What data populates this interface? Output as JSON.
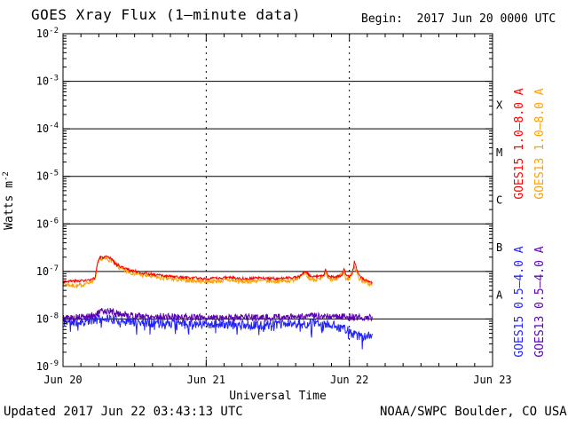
{
  "header": {
    "title": "GOES Xray Flux (1–minute data)",
    "begin_label": "Begin:  2017 Jun 20 0000 UTC"
  },
  "footer": {
    "updated": "Updated 2017 Jun 22 03:43:13 UTC",
    "credit": "NOAA/SWPC Boulder, CO USA"
  },
  "chart_data": {
    "type": "line",
    "title": "GOES Xray Flux (1–minute data)",
    "xlabel": "Universal Time",
    "ylabel": {
      "base": "Watts m",
      "exp": "-2"
    },
    "x_axis": {
      "tick_labels": [
        "Jun 20",
        "Jun 21",
        "Jun 22",
        "Jun 23"
      ],
      "days": [
        0,
        1,
        2,
        3
      ],
      "minor_ticks_per_day": 8
    },
    "y_axis": {
      "log_range": [
        -9,
        -2
      ],
      "tick_exponents": [
        "-2",
        "-3",
        "-4",
        "-5",
        "-6",
        "-7",
        "-8",
        "-9"
      ]
    },
    "grid": {
      "h_solid_decades": [
        -3,
        -4,
        -5,
        -6,
        -7,
        -8
      ],
      "v_dashed_days": [
        1,
        2
      ]
    },
    "flux_classes": [
      {
        "label": "X",
        "log_center": -3.5
      },
      {
        "label": "M",
        "log_center": -4.5
      },
      {
        "label": "C",
        "log_center": -5.5
      },
      {
        "label": "B",
        "log_center": -6.5
      },
      {
        "label": "A",
        "log_center": -7.5
      }
    ],
    "legend": [
      {
        "text": "GOES15 1.0–8.0 A",
        "color": "#ff0000",
        "col": 0,
        "half": "top"
      },
      {
        "text": "GOES13 1.0–8.0 A",
        "color": "#ffa000",
        "col": 1,
        "half": "top"
      },
      {
        "text": "GOES15 0.5–4.0 A",
        "color": "#2222ff",
        "col": 0,
        "half": "bottom"
      },
      {
        "text": "GOES13 0.5–4.0 A",
        "color": "#5c00b4",
        "col": 1,
        "half": "bottom"
      }
    ],
    "series": [
      {
        "id": "goes13-long",
        "name": "GOES13 1.0–8.0 A",
        "color": "#ffa000",
        "noise": 0.045,
        "seed": 7,
        "end_day": 2.16,
        "keypoints": [
          [
            0,
            5.6e-08
          ],
          [
            0.07,
            5e-08
          ],
          [
            0.1,
            4.9e-08
          ],
          [
            0.15,
            5.4e-08
          ],
          [
            0.2,
            6.2e-08
          ],
          [
            0.225,
            7e-08
          ],
          [
            0.24,
            1.3e-07
          ],
          [
            0.26,
            1.8e-07
          ],
          [
            0.3,
            1.85e-07
          ],
          [
            0.33,
            1.75e-07
          ],
          [
            0.35,
            1.6e-07
          ],
          [
            0.37,
            1.35e-07
          ],
          [
            0.4,
            1.15e-07
          ],
          [
            0.45,
            1e-07
          ],
          [
            0.5,
            9e-08
          ],
          [
            0.55,
            8.4e-08
          ],
          [
            0.6,
            8e-08
          ],
          [
            0.7,
            7.2e-08
          ],
          [
            0.8,
            6.7e-08
          ],
          [
            0.9,
            6.4e-08
          ],
          [
            1.0,
            6.2e-08
          ],
          [
            1.1,
            6.3e-08
          ],
          [
            1.15,
            6.6e-08
          ],
          [
            1.25,
            6.1e-08
          ],
          [
            1.35,
            6.4e-08
          ],
          [
            1.5,
            6.2e-08
          ],
          [
            1.6,
            6.5e-08
          ],
          [
            1.69,
            8.8e-08
          ],
          [
            1.72,
            7e-08
          ],
          [
            1.8,
            6.7e-08
          ],
          [
            1.835,
            9.5e-08
          ],
          [
            1.85,
            6.9e-08
          ],
          [
            1.9,
            6.6e-08
          ],
          [
            1.962,
            1e-07
          ],
          [
            1.975,
            7.2e-08
          ],
          [
            2.0,
            6.9e-08
          ],
          [
            2.035,
            1.35e-07
          ],
          [
            2.05,
            9.5e-08
          ],
          [
            2.07,
            7e-08
          ],
          [
            2.1,
            6.2e-08
          ],
          [
            2.13,
            5.6e-08
          ],
          [
            2.16,
            5.2e-08
          ]
        ]
      },
      {
        "id": "goes15-long",
        "name": "GOES15 1.0–8.0 A",
        "color": "#ff0000",
        "noise": 0.028,
        "seed": 3,
        "end_day": 2.16,
        "keypoints": [
          [
            0,
            6.2e-08
          ],
          [
            0.1,
            6.3e-08
          ],
          [
            0.2,
            6.6e-08
          ],
          [
            0.225,
            7.5e-08
          ],
          [
            0.24,
            1.5e-07
          ],
          [
            0.255,
            1.95e-07
          ],
          [
            0.3,
            2e-07
          ],
          [
            0.33,
            1.9e-07
          ],
          [
            0.345,
            1.8e-07
          ],
          [
            0.36,
            1.5e-07
          ],
          [
            0.4,
            1.28e-07
          ],
          [
            0.45,
            1.12e-07
          ],
          [
            0.5,
            1.02e-07
          ],
          [
            0.55,
            9.4e-08
          ],
          [
            0.6,
            8.9e-08
          ],
          [
            0.7,
            8.1e-08
          ],
          [
            0.8,
            7.6e-08
          ],
          [
            0.9,
            7.3e-08
          ],
          [
            1.0,
            7.1e-08
          ],
          [
            1.1,
            7.2e-08
          ],
          [
            1.15,
            7.6e-08
          ],
          [
            1.25,
            7.1e-08
          ],
          [
            1.35,
            7.3e-08
          ],
          [
            1.5,
            7.1e-08
          ],
          [
            1.6,
            7.4e-08
          ],
          [
            1.66,
            8e-08
          ],
          [
            1.69,
            1.02e-07
          ],
          [
            1.72,
            8.2e-08
          ],
          [
            1.78,
            7.8e-08
          ],
          [
            1.82,
            8e-08
          ],
          [
            1.835,
            1.15e-07
          ],
          [
            1.85,
            8e-08
          ],
          [
            1.9,
            7.7e-08
          ],
          [
            1.95,
            8e-08
          ],
          [
            1.962,
            1.2e-07
          ],
          [
            1.975,
            8.3e-08
          ],
          [
            2.0,
            8e-08
          ],
          [
            2.02,
            9e-08
          ],
          [
            2.035,
            1.6e-07
          ],
          [
            2.05,
            1.15e-07
          ],
          [
            2.07,
            8e-08
          ],
          [
            2.1,
            7e-08
          ],
          [
            2.13,
            6.2e-08
          ],
          [
            2.16,
            5.8e-08
          ]
        ]
      },
      {
        "id": "goes15-short",
        "name": "GOES15 0.5–4.0 A",
        "color": "#2222ff",
        "noise": 0.1,
        "seed": 11,
        "down_prob": 0.07,
        "down_amp": 0.22,
        "end_day": 2.16,
        "keypoints": [
          [
            0,
            8.8e-09
          ],
          [
            0.15,
            8.8e-09
          ],
          [
            0.25,
            1e-08
          ],
          [
            0.3,
            1.05e-08
          ],
          [
            0.4,
            9.2e-09
          ],
          [
            0.55,
            8.6e-09
          ],
          [
            0.8,
            8.2e-09
          ],
          [
            1.0,
            8e-09
          ],
          [
            1.2,
            7.6e-09
          ],
          [
            1.4,
            7.5e-09
          ],
          [
            1.6,
            7.9e-09
          ],
          [
            1.8,
            7.9e-09
          ],
          [
            1.9,
            7.4e-09
          ],
          [
            1.98,
            6e-09
          ],
          [
            2.03,
            4.6e-09
          ],
          [
            2.08,
            4.2e-09
          ],
          [
            2.12,
            4.6e-09
          ],
          [
            2.16,
            4.4e-09
          ]
        ]
      },
      {
        "id": "goes13-short",
        "name": "GOES13 0.5–4.0 A",
        "color": "#5c00b4",
        "noise": 0.075,
        "seed": 5,
        "end_day": 2.16,
        "keypoints": [
          [
            0,
            1.05e-08
          ],
          [
            0.15,
            1.08e-08
          ],
          [
            0.22,
            1.2e-08
          ],
          [
            0.28,
            1.5e-08
          ],
          [
            0.33,
            1.45e-08
          ],
          [
            0.4,
            1.28e-08
          ],
          [
            0.5,
            1.15e-08
          ],
          [
            0.7,
            1.12e-08
          ],
          [
            0.9,
            1.08e-08
          ],
          [
            1.1,
            1.08e-08
          ],
          [
            1.3,
            1.08e-08
          ],
          [
            1.5,
            1.08e-08
          ],
          [
            1.7,
            1.12e-08
          ],
          [
            1.85,
            1.18e-08
          ],
          [
            1.95,
            1.12e-08
          ],
          [
            2.05,
            1.08e-08
          ],
          [
            2.16,
            1.05e-08
          ]
        ]
      }
    ]
  }
}
